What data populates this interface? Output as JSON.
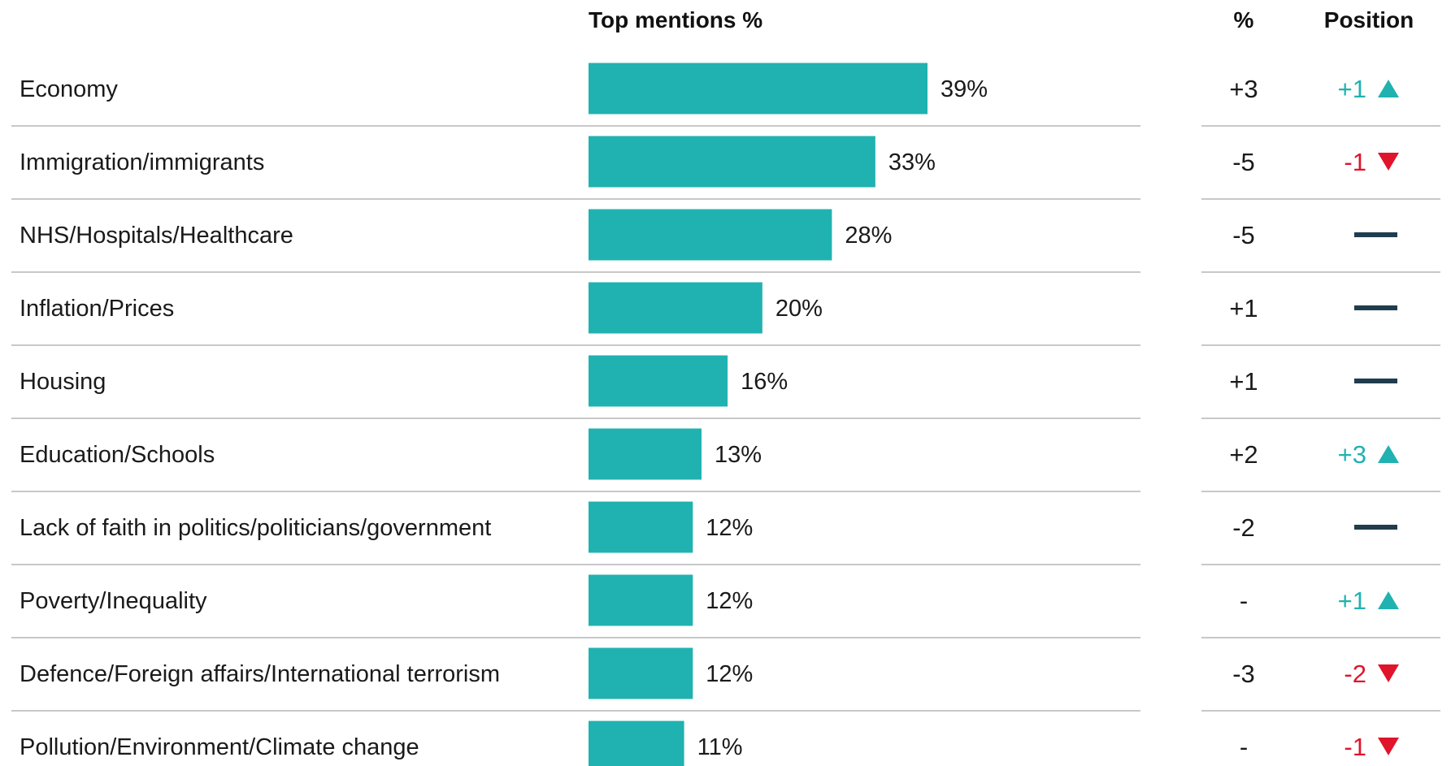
{
  "chart_data": {
    "type": "bar",
    "orientation": "horizontal",
    "title": "",
    "headers": {
      "bar_column": "Top mentions %",
      "change_column": "%",
      "position_column": "Position"
    },
    "categories": [
      "Economy",
      "Immigration/immigrants",
      "NHS/Hospitals/Healthcare",
      "Inflation/Prices",
      "Housing",
      "Education/Schools",
      "Lack of faith in politics/politicians/government",
      "Poverty/Inequality",
      "Defence/Foreign affairs/International terrorism",
      "Pollution/Environment/Climate change"
    ],
    "values": [
      39,
      33,
      28,
      20,
      16,
      13,
      12,
      12,
      12,
      11
    ],
    "value_labels": [
      "39%",
      "33%",
      "28%",
      "20%",
      "16%",
      "13%",
      "12%",
      "12%",
      "12%",
      "11%"
    ],
    "change_labels": [
      "+3",
      "-5",
      "-5",
      "+1",
      "+1",
      "+2",
      "-2",
      "-",
      "-3",
      "-"
    ],
    "position_labels": [
      "+1",
      "-1",
      "",
      "",
      "",
      "+3",
      "",
      "+1",
      "-2",
      "-1"
    ],
    "position_direction": [
      "up",
      "down",
      "same",
      "same",
      "same",
      "up",
      "same",
      "up",
      "down",
      "down"
    ],
    "xlim": [
      0,
      39
    ],
    "grid": false,
    "legend": "none",
    "colors": {
      "bar": "#20b2b0",
      "up": "#20b2b0",
      "down": "#e0142b",
      "same": "#1f3d4d",
      "divider": "#c8c8c8"
    }
  }
}
